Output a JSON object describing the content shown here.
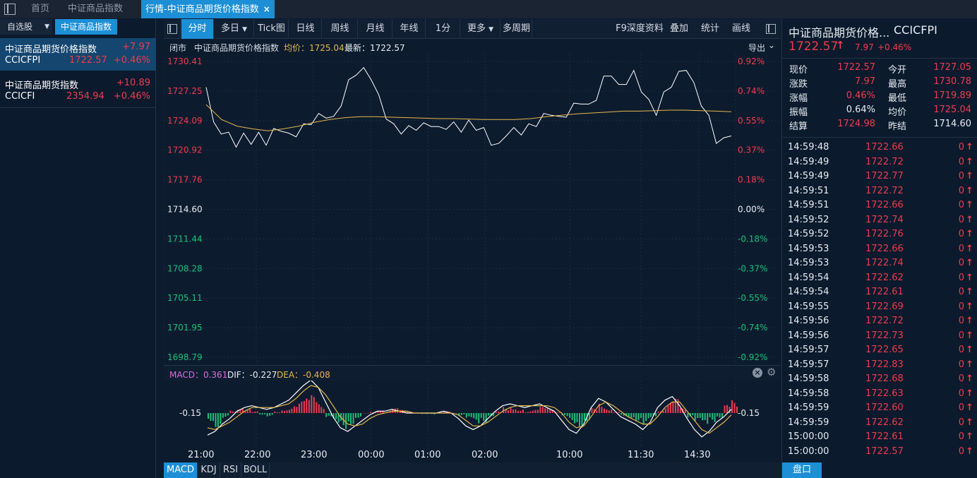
{
  "tabs": {
    "home": "首页",
    "index": "中证商品指数",
    "active": "行情-中证商品期货价格指数",
    "close": "×"
  },
  "left_panel": {
    "watchlist_label": "自选股",
    "dropdown_arrow": "▼",
    "index_label": "中证商品指数",
    "items": [
      {
        "name": "中证商品期货价格指数",
        "change": "+7.97",
        "code": "CCICFPI",
        "price": "1722.57",
        "pct": "+0.46%"
      },
      {
        "name": "中证商品期货指数",
        "change": "+10.89",
        "code": "CCICFI",
        "price": "2354.94",
        "pct": "+0.46%"
      }
    ]
  },
  "toolbar": {
    "buttons": [
      "分时",
      "多日",
      "Tick图",
      "日线",
      "周线",
      "月线",
      "年线",
      "1分",
      "更多",
      "多周期"
    ],
    "right_buttons": [
      "F9深度资料",
      "叠加",
      "统计",
      "画线"
    ]
  },
  "infobar": {
    "status": "闭市",
    "name": "中证商品期货价格指数",
    "avg": "均价：1725.04",
    "latest": "最新：1722.57",
    "export": "导出"
  },
  "chart_data": {
    "type": "line",
    "y_ticks_price": [
      "1730.41",
      "1727.25",
      "1724.09",
      "1720.92",
      "1717.76",
      "1714.60",
      "1711.44",
      "1708.28",
      "1705.11",
      "1701.95",
      "1698.79"
    ],
    "y_ticks_pct": [
      "0.92%",
      "0.74%",
      "0.55%",
      "0.37%",
      "0.18%",
      "0.00%",
      "-0.18%",
      "-0.37%",
      "-0.55%",
      "-0.74%",
      "-0.92%"
    ],
    "ylim": [
      1698.79,
      1730.41
    ],
    "prev_settle": 1714.6,
    "x_ticks": [
      "21:00",
      "22:00",
      "23:00",
      "00:00",
      "01:00",
      "02:00",
      "10:00",
      "11:30",
      "14:30"
    ],
    "series": [
      {
        "values": [
          1728.0,
          1723.6,
          1723.0,
          1722.5,
          1721.6,
          1722.4,
          1721.9,
          1722.5,
          1721.8,
          1722.9,
          1723.3,
          1722.4,
          1722.7,
          1723.4,
          1724.0,
          1724.5,
          1724.7,
          1724.2,
          1726.0,
          1728.1,
          1729.3,
          1729.4,
          1728.8,
          1726.5,
          1724.6,
          1723.4,
          1723.0,
          1723.2,
          1723.4,
          1723.5,
          1723.8,
          1723.1,
          1723.5,
          1723.6,
          1723.2,
          1723.8,
          1723.4,
          1723.0,
          1721.8,
          1721.3,
          1722.8,
          1723.0,
          1722.9,
          1723.4,
          1723.8,
          1724.5,
          1725.0,
          1724.2,
          1724.8,
          1725.6,
          1726.2,
          1725.5,
          1726.6,
          1728.5,
          1729.2,
          1727.6,
          1728.3,
          1729.1,
          1727.5,
          1726.0,
          1725.0,
          1726.8,
          1728.0,
          1729.0,
          1729.8,
          1727.8,
          1726.0,
          1724.3,
          1722.0,
          1721.9,
          1722.8
        ]
      },
      {
        "values": [
          1725.8,
          1724.2,
          1723.5,
          1723.2,
          1723.0,
          1723.2,
          1723.5,
          1723.9,
          1724.2,
          1724.4,
          1724.5,
          1724.5,
          1724.45,
          1724.4,
          1724.35,
          1724.3,
          1724.3,
          1724.25,
          1724.2,
          1724.2,
          1724.2,
          1724.3,
          1724.5,
          1724.65,
          1724.8,
          1724.9,
          1725.0,
          1725.1,
          1725.1,
          1725.15,
          1725.2,
          1725.2,
          1725.15,
          1725.1,
          1725.04
        ]
      }
    ]
  },
  "macd": {
    "label": "MACD：0.361",
    "dif": "DIF：-0.227",
    "dea": "DEA：-0.408",
    "tick": "-0.15",
    "hist": [
      -5,
      -9,
      -3,
      2,
      4,
      3,
      1,
      -1,
      -2,
      1,
      3,
      5,
      7,
      9,
      11,
      6,
      -4,
      -8,
      -10,
      -7,
      -3,
      0,
      1,
      2,
      1,
      3,
      2,
      1,
      0,
      -1,
      -1,
      0,
      1,
      0,
      -2,
      -5,
      -8,
      -6,
      -2,
      1,
      4,
      5,
      3,
      1,
      2,
      4,
      3,
      1,
      -3,
      -7,
      -9,
      -5,
      3,
      7,
      4,
      1,
      -2,
      -3,
      -5,
      -8,
      -4,
      2,
      6,
      9,
      3,
      -3,
      -7,
      -10,
      -6,
      -3,
      5,
      8
    ],
    "dif_line": [
      -12,
      -10,
      -6,
      -3,
      1,
      3,
      4,
      3,
      2,
      3,
      5,
      7,
      11,
      15,
      18,
      14,
      6,
      -2,
      -8,
      -10,
      -7,
      -4,
      -1,
      1,
      1,
      2,
      1,
      0,
      0,
      0,
      0,
      0,
      1,
      0,
      -3,
      -7,
      -9,
      -7,
      -3,
      1,
      4,
      5,
      4,
      3,
      4,
      5,
      3,
      1,
      -4,
      -9,
      -11,
      -6,
      3,
      8,
      6,
      2,
      -2,
      -4,
      -6,
      -9,
      -5,
      3,
      7,
      9,
      4,
      -3,
      -9,
      -13,
      -10,
      -5,
      -2,
      2
    ],
    "dea_line": [
      -8,
      -9,
      -7,
      -5,
      -2,
      1,
      3,
      3,
      3,
      3,
      4,
      5,
      8,
      12,
      15,
      14,
      10,
      4,
      -2,
      -6,
      -7,
      -6,
      -3,
      -1,
      0,
      1,
      1,
      1,
      0,
      0,
      0,
      0,
      0,
      0,
      -1,
      -4,
      -7,
      -7,
      -5,
      -2,
      1,
      3,
      4,
      4,
      4,
      4,
      4,
      3,
      0,
      -5,
      -8,
      -7,
      -2,
      4,
      6,
      4,
      1,
      -2,
      -4,
      -6,
      -6,
      -2,
      3,
      6,
      6,
      1,
      -4,
      -9,
      -11,
      -8,
      -5,
      -1
    ]
  },
  "indicator_tabs": [
    "MACD",
    "KDJ",
    "RSI",
    "BOLL"
  ],
  "right_panel": {
    "title": "中证商品期货价格...",
    "code": "CCICFPI",
    "price": "1722.57",
    "change": "7.97",
    "pct": "+0.46%",
    "stats": [
      {
        "l": "现价",
        "v": "1722.57",
        "l2": "今开",
        "v2": "1727.05"
      },
      {
        "l": "涨跌",
        "v": "7.97",
        "l2": "最高",
        "v2": "1730.78"
      },
      {
        "l": "涨幅",
        "v": "0.46%",
        "l2": "最低",
        "v2": "1719.89"
      },
      {
        "l": "振幅",
        "v": "0.64%",
        "l2": "均价",
        "v2": "1725.04"
      },
      {
        "l": "结算",
        "v": "1724.98",
        "l2": "昨结",
        "v2": "1714.60"
      }
    ],
    "ticks": [
      {
        "t": "14:59:48",
        "p": "1722.66",
        "v": "0"
      },
      {
        "t": "14:59:49",
        "p": "1722.72",
        "v": "0"
      },
      {
        "t": "14:59:49",
        "p": "1722.77",
        "v": "0"
      },
      {
        "t": "14:59:51",
        "p": "1722.72",
        "v": "0"
      },
      {
        "t": "14:59:51",
        "p": "1722.66",
        "v": "0"
      },
      {
        "t": "14:59:52",
        "p": "1722.74",
        "v": "0"
      },
      {
        "t": "14:59:52",
        "p": "1722.76",
        "v": "0"
      },
      {
        "t": "14:59:53",
        "p": "1722.66",
        "v": "0"
      },
      {
        "t": "14:59:53",
        "p": "1722.74",
        "v": "0"
      },
      {
        "t": "14:59:54",
        "p": "1722.62",
        "v": "0"
      },
      {
        "t": "14:59:54",
        "p": "1722.61",
        "v": "0"
      },
      {
        "t": "14:59:55",
        "p": "1722.69",
        "v": "0"
      },
      {
        "t": "14:59:56",
        "p": "1722.72",
        "v": "0"
      },
      {
        "t": "14:59:56",
        "p": "1722.73",
        "v": "0"
      },
      {
        "t": "14:59:57",
        "p": "1722.65",
        "v": "0"
      },
      {
        "t": "14:59:57",
        "p": "1722.83",
        "v": "0"
      },
      {
        "t": "14:59:58",
        "p": "1722.68",
        "v": "0"
      },
      {
        "t": "14:59:58",
        "p": "1722.63",
        "v": "0"
      },
      {
        "t": "14:59:59",
        "p": "1722.60",
        "v": "0"
      },
      {
        "t": "14:59:59",
        "p": "1722.62",
        "v": "0"
      },
      {
        "t": "15:00:00",
        "p": "1722.61",
        "v": "0"
      },
      {
        "t": "15:00:00",
        "p": "1722.57",
        "v": "0"
      }
    ],
    "orderbook_button": "盘口"
  },
  "colors": {
    "up": "#f03a4e",
    "down": "#1cc07a",
    "accent": "#1c8fd6",
    "avg_line": "#e5b84b"
  }
}
